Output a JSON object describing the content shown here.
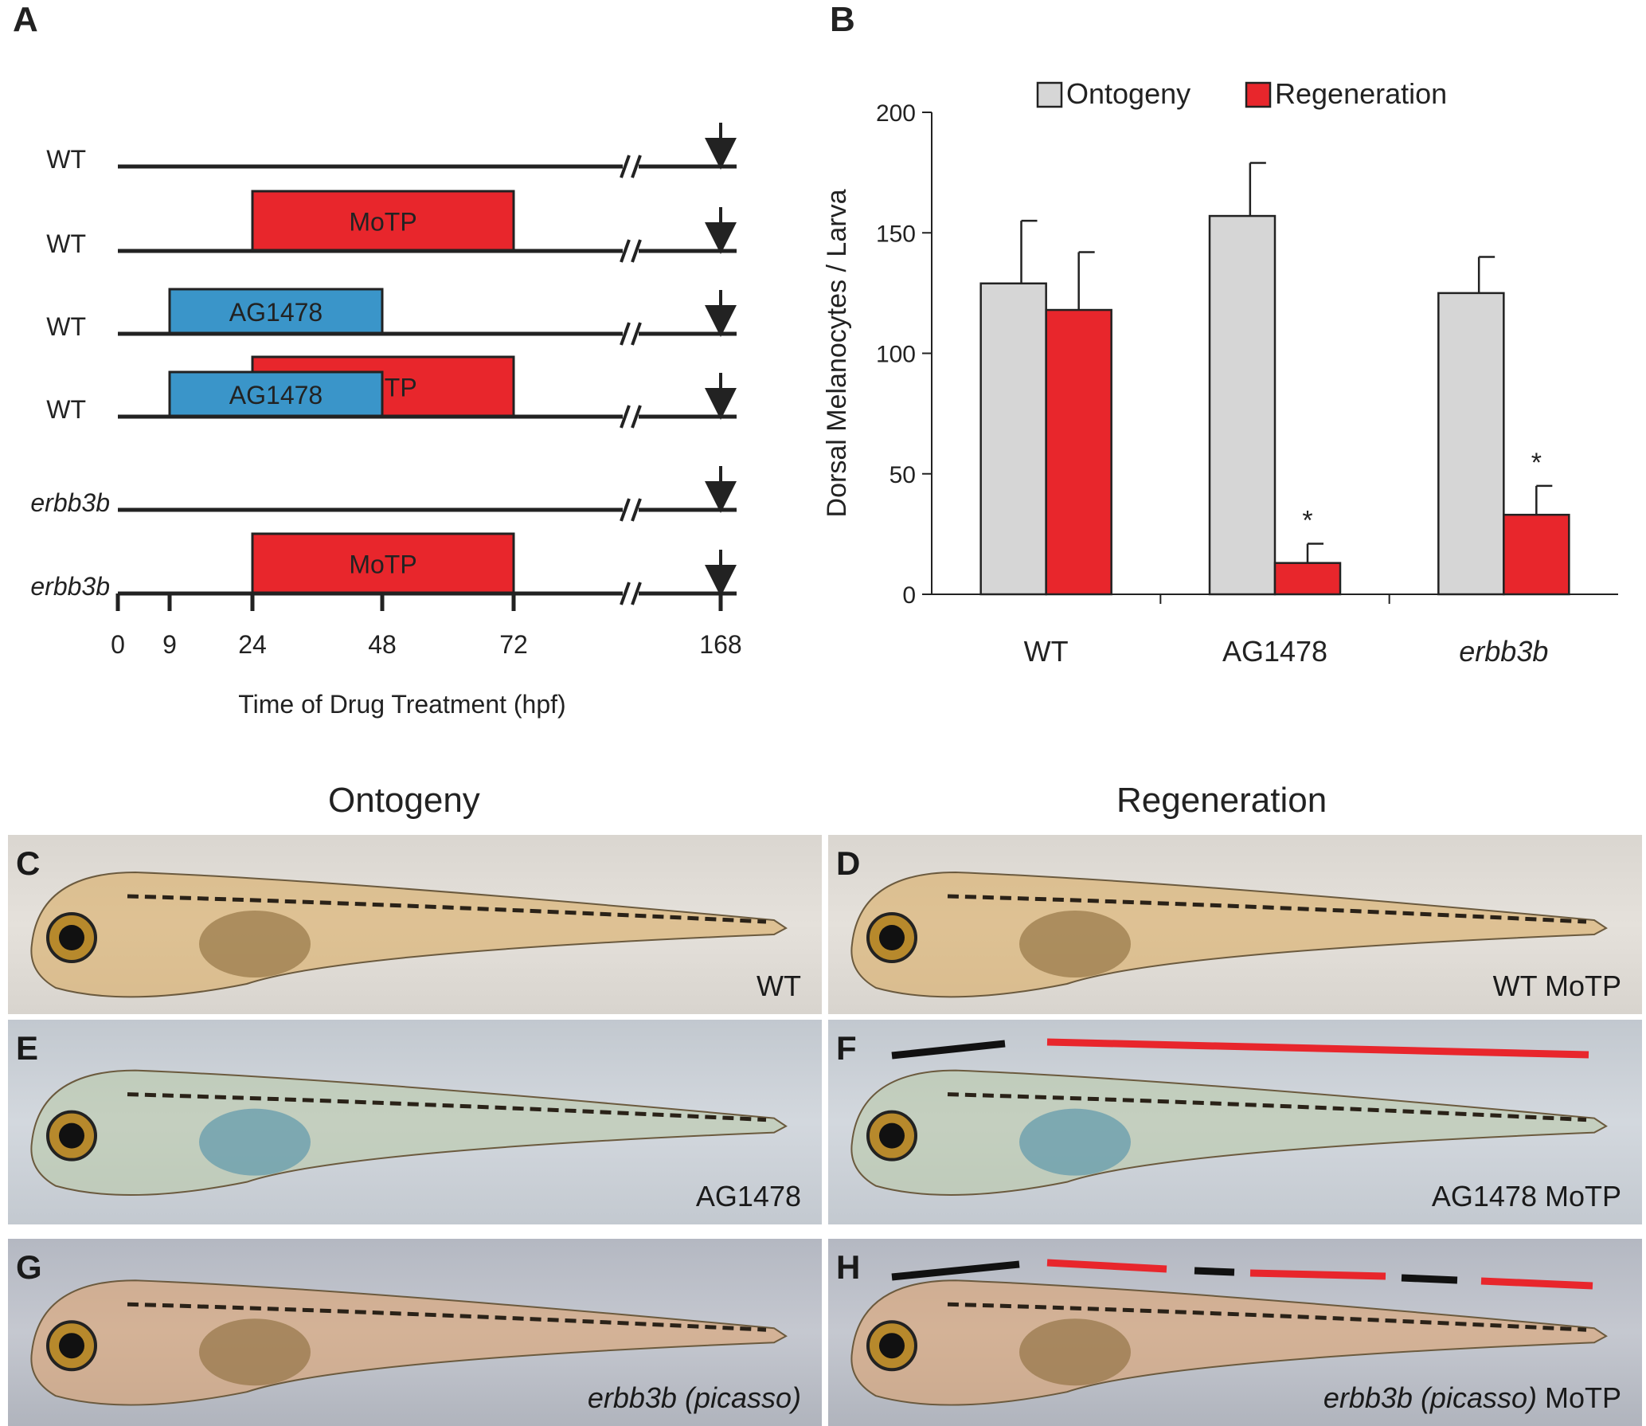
{
  "panel_labels": [
    "A",
    "B",
    "C",
    "D",
    "E",
    "F",
    "G",
    "H"
  ],
  "panel_a": {
    "rows": [
      {
        "label": "WT",
        "italic": false,
        "bars": []
      },
      {
        "label": "WT",
        "italic": false,
        "bars": [
          {
            "name": "MoTP",
            "start": 24,
            "end": 72,
            "color": "#e8262c"
          }
        ]
      },
      {
        "label": "WT",
        "italic": false,
        "bars": [
          {
            "name": "AG1478",
            "start": 9,
            "end": 48,
            "color": "#3a95c9"
          }
        ]
      },
      {
        "label": "WT",
        "italic": false,
        "bars": [
          {
            "name": "MoTP",
            "start": 24,
            "end": 72,
            "color": "#e8262c"
          },
          {
            "name": "AG1478",
            "start": 9,
            "end": 48,
            "color": "#3a95c9"
          }
        ]
      },
      {
        "label": "erbb3b",
        "italic": true,
        "bars": []
      },
      {
        "label": "erbb3b",
        "italic": true,
        "bars": [
          {
            "name": "MoTP",
            "start": 24,
            "end": 72,
            "color": "#e8262c"
          }
        ]
      }
    ],
    "ticks": [
      "0",
      "9",
      "24",
      "48",
      "72",
      "168"
    ],
    "axis_title": "Time of Drug Treatment (hpf)"
  },
  "chart_data": {
    "type": "bar",
    "categories": [
      "WT",
      "AG1478",
      "erbb3b"
    ],
    "series": [
      {
        "name": "Ontogeny",
        "color": "#d6d6d6",
        "values": [
          129,
          157,
          125
        ],
        "errors": [
          26,
          22,
          15
        ]
      },
      {
        "name": "Regeneration",
        "color": "#e8262c",
        "values": [
          118,
          13,
          33
        ],
        "errors": [
          24,
          8,
          12
        ]
      }
    ],
    "significance": [
      "",
      "*",
      "*"
    ],
    "ylabel": "Dorsal Melanocytes / Larva",
    "ylim": [
      0,
      200
    ],
    "yticks": [
      0,
      50,
      100,
      150,
      200
    ],
    "legend": "top"
  },
  "photos": {
    "col_titles": [
      "Ontogeny",
      "Regeneration"
    ],
    "panels": [
      {
        "tag": "C",
        "caption": "WT",
        "caption_italic": "",
        "style": "warm"
      },
      {
        "tag": "D",
        "caption": "WT MoTP",
        "caption_italic": "",
        "style": "warm"
      },
      {
        "tag": "E",
        "caption": "AG1478",
        "caption_italic": "",
        "style": "cool"
      },
      {
        "tag": "F",
        "caption": " MoTP",
        "caption_italic": "",
        "caption_prefix": "AG1478",
        "style": "cool"
      },
      {
        "tag": "G",
        "caption": "",
        "caption_italic": "erbb3b (picasso)",
        "style": "slate"
      },
      {
        "tag": "H",
        "caption": " MoTP",
        "caption_italic": "erbb3b (picasso)",
        "style": "slate"
      }
    ]
  }
}
